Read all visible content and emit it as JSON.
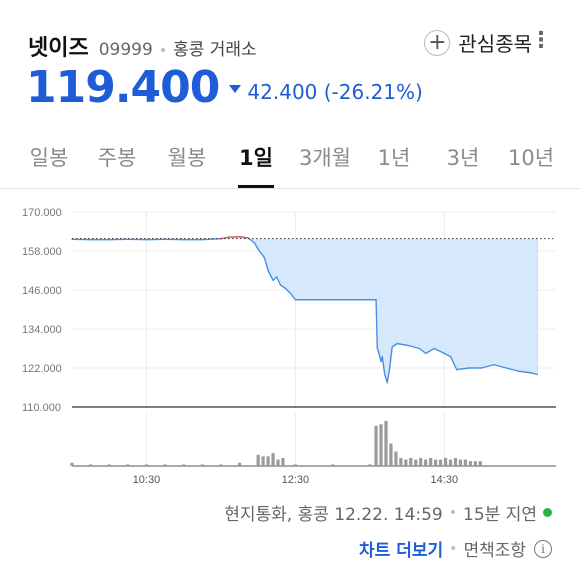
{
  "header": {
    "name": "넷이즈",
    "code": "09999",
    "separator": "•",
    "exchange": "홍콩 거래소",
    "watchlist_label": "관심종목",
    "watch_icon": "plus-circle-icon",
    "menu_icon": "more-vertical-icon"
  },
  "quote": {
    "price": "119.400",
    "change": "42.400 (-26.21%)",
    "direction_icon": "down-triangle-icon"
  },
  "tabs": [
    {
      "label": "일봉",
      "active": false
    },
    {
      "label": "주봉",
      "active": false
    },
    {
      "label": "월봉",
      "active": false
    },
    {
      "label": "1일",
      "active": true
    },
    {
      "label": "3개월",
      "active": false
    },
    {
      "label": "1년",
      "active": false
    },
    {
      "label": "3년",
      "active": false
    },
    {
      "label": "10년",
      "active": false
    }
  ],
  "chart_data": {
    "type": "area",
    "y_tick_labels": [
      "170.000",
      "158.000",
      "146.000",
      "134.000",
      "122.000",
      "110.000"
    ],
    "y_ticks": [
      170,
      158,
      146,
      134,
      122,
      110
    ],
    "ylim": [
      110,
      170
    ],
    "x_tick_labels": [
      "10:30",
      "12:30",
      "14:30"
    ],
    "x_ticks": [
      "10:30",
      "12:30",
      "14:30"
    ],
    "x_range": [
      "09:30",
      "16:00"
    ],
    "previous_close": 161.8,
    "colors": {
      "down": "#4a90e2",
      "up": "#e05050",
      "fill": "#d6e8fb",
      "reference_line": "#333333"
    },
    "price_series": [
      {
        "t": "09:30",
        "v": 161.6
      },
      {
        "t": "09:45",
        "v": 161.5
      },
      {
        "t": "10:00",
        "v": 161.5
      },
      {
        "t": "10:15",
        "v": 161.6
      },
      {
        "t": "10:30",
        "v": 161.5
      },
      {
        "t": "10:45",
        "v": 161.6
      },
      {
        "t": "11:00",
        "v": 161.5
      },
      {
        "t": "11:15",
        "v": 161.5
      },
      {
        "t": "11:30",
        "v": 161.8
      },
      {
        "t": "11:37",
        "v": 162.3
      },
      {
        "t": "11:45",
        "v": 162.4
      },
      {
        "t": "11:52",
        "v": 162.0
      },
      {
        "t": "11:57",
        "v": 160.5
      },
      {
        "t": "12:00",
        "v": 158.5
      },
      {
        "t": "12:05",
        "v": 156.0
      },
      {
        "t": "12:08",
        "v": 152.0
      },
      {
        "t": "12:12",
        "v": 149.0
      },
      {
        "t": "12:15",
        "v": 150.0
      },
      {
        "t": "12:18",
        "v": 147.5
      },
      {
        "t": "12:22",
        "v": 146.5
      },
      {
        "t": "12:26",
        "v": 145.0
      },
      {
        "t": "12:30",
        "v": 143.0
      },
      {
        "t": "13:00",
        "v": 143.0
      },
      {
        "t": "13:30",
        "v": 143.0
      },
      {
        "t": "13:35",
        "v": 143.0
      },
      {
        "t": "13:36",
        "v": 128.0
      },
      {
        "t": "13:37",
        "v": 127.0
      },
      {
        "t": "13:39",
        "v": 124.0
      },
      {
        "t": "13:40",
        "v": 125.5
      },
      {
        "t": "13:42",
        "v": 120.0
      },
      {
        "t": "13:44",
        "v": 117.5
      },
      {
        "t": "13:46",
        "v": 122.0
      },
      {
        "t": "13:48",
        "v": 128.5
      },
      {
        "t": "13:52",
        "v": 129.5
      },
      {
        "t": "14:00",
        "v": 129.0
      },
      {
        "t": "14:10",
        "v": 128.0
      },
      {
        "t": "14:15",
        "v": 126.5
      },
      {
        "t": "14:22",
        "v": 128.0
      },
      {
        "t": "14:30",
        "v": 126.5
      },
      {
        "t": "14:35",
        "v": 125.5
      },
      {
        "t": "14:40",
        "v": 121.5
      },
      {
        "t": "14:50",
        "v": 122.0
      },
      {
        "t": "15:00",
        "v": 122.0
      },
      {
        "t": "15:10",
        "v": 123.0
      },
      {
        "t": "15:20",
        "v": 122.0
      },
      {
        "t": "15:30",
        "v": 121.0
      },
      {
        "t": "15:40",
        "v": 120.5
      },
      {
        "t": "15:45",
        "v": 120.0
      }
    ],
    "volume": [
      {
        "t": "09:30",
        "v": 2
      },
      {
        "t": "09:45",
        "v": 1
      },
      {
        "t": "10:00",
        "v": 1
      },
      {
        "t": "10:15",
        "v": 1
      },
      {
        "t": "10:30",
        "v": 1
      },
      {
        "t": "10:45",
        "v": 1
      },
      {
        "t": "11:00",
        "v": 1
      },
      {
        "t": "11:15",
        "v": 1
      },
      {
        "t": "11:30",
        "v": 1
      },
      {
        "t": "11:45",
        "v": 2
      },
      {
        "t": "12:00",
        "v": 7
      },
      {
        "t": "12:04",
        "v": 6
      },
      {
        "t": "12:08",
        "v": 6
      },
      {
        "t": "12:12",
        "v": 8
      },
      {
        "t": "12:16",
        "v": 4
      },
      {
        "t": "12:20",
        "v": 5
      },
      {
        "t": "12:30",
        "v": 1
      },
      {
        "t": "13:00",
        "v": 1
      },
      {
        "t": "13:30",
        "v": 1
      },
      {
        "t": "13:35",
        "v": 25
      },
      {
        "t": "13:39",
        "v": 26
      },
      {
        "t": "13:43",
        "v": 28
      },
      {
        "t": "13:47",
        "v": 14
      },
      {
        "t": "13:51",
        "v": 9
      },
      {
        "t": "13:55",
        "v": 5
      },
      {
        "t": "13:59",
        "v": 4
      },
      {
        "t": "14:03",
        "v": 5
      },
      {
        "t": "14:07",
        "v": 4
      },
      {
        "t": "14:11",
        "v": 5
      },
      {
        "t": "14:15",
        "v": 4
      },
      {
        "t": "14:19",
        "v": 5
      },
      {
        "t": "14:23",
        "v": 4
      },
      {
        "t": "14:27",
        "v": 4
      },
      {
        "t": "14:31",
        "v": 5
      },
      {
        "t": "14:35",
        "v": 4
      },
      {
        "t": "14:39",
        "v": 5
      },
      {
        "t": "14:43",
        "v": 4
      },
      {
        "t": "14:47",
        "v": 4
      },
      {
        "t": "14:51",
        "v": 3
      },
      {
        "t": "14:55",
        "v": 3
      },
      {
        "t": "14:59",
        "v": 3
      }
    ]
  },
  "footer": {
    "info": "현지통화, 홍콩 12.22. 14:59",
    "separator": "•",
    "delay": "15분 지연",
    "more_chart": "차트 더보기",
    "disclaimer": "면책조항",
    "info_icon": "info-circle-icon"
  }
}
